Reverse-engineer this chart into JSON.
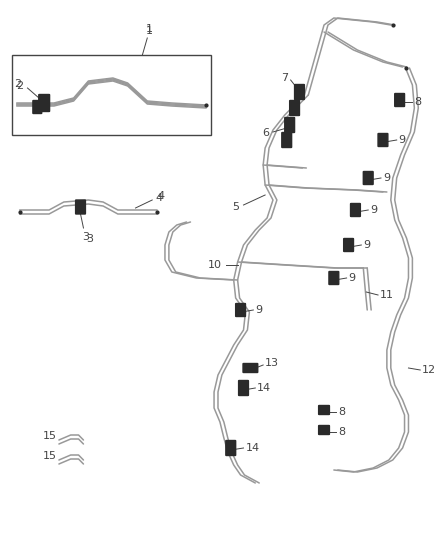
{
  "background_color": "#ffffff",
  "line_color": "#999999",
  "connector_color": "#2a2a2a",
  "label_color": "#444444",
  "box_color": "#444444",
  "figsize": [
    4.38,
    5.33
  ],
  "dpi": 100
}
